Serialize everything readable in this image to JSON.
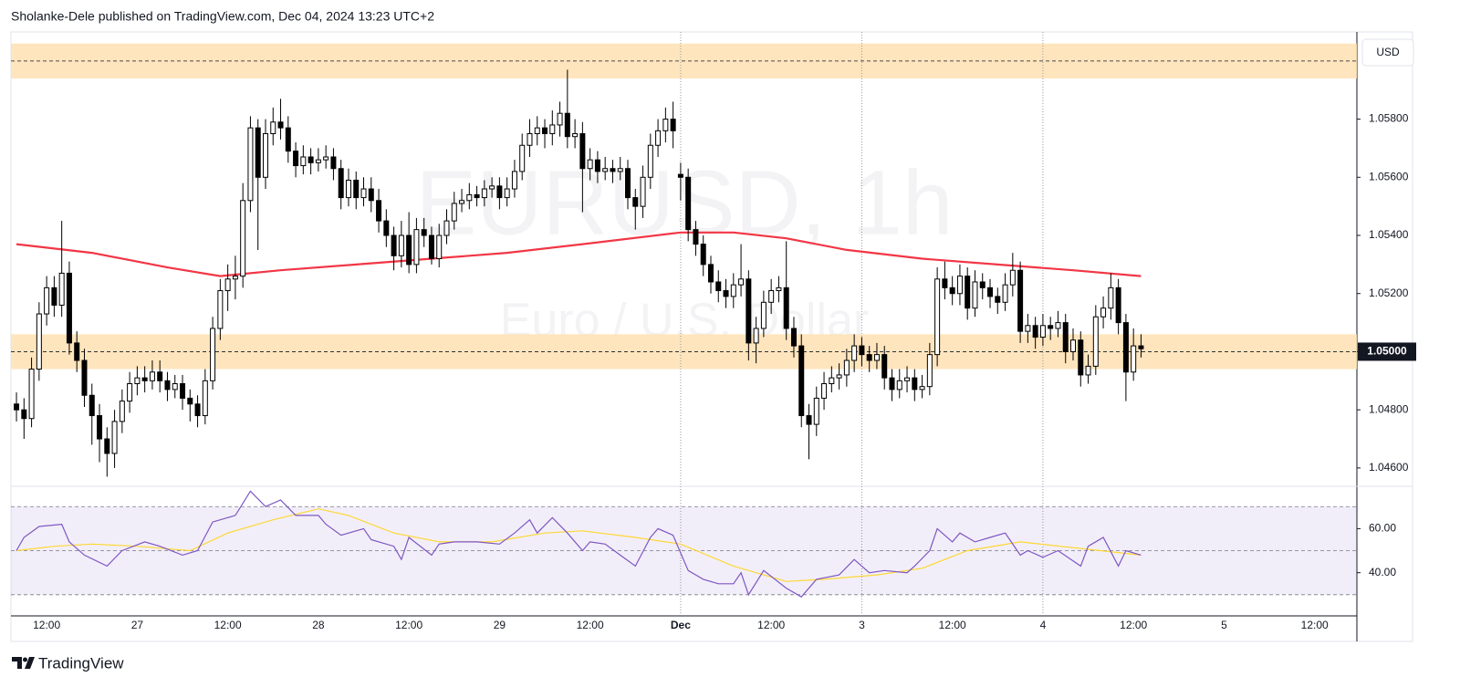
{
  "chart_data": {
    "type": "candlestick",
    "header": "Sholanke-Dele published on TradingView.com, Dec 04, 2024 13:23 UTC+2",
    "watermark": {
      "symbol": "EURUSD, 1h",
      "description": "Euro / U.S. Dollar"
    },
    "currency": "USD",
    "brand": "TradingView",
    "up_color": "#ffffff",
    "down_color": "#000000",
    "ylim": [
      1.0454,
      1.061
    ],
    "yticks": [
      {
        "value": 1.046,
        "label": "1.04600"
      },
      {
        "value": 1.048,
        "label": "1.04800"
      },
      {
        "value": 1.05,
        "label": "1.05000"
      },
      {
        "value": 1.052,
        "label": "1.05200"
      },
      {
        "value": 1.054,
        "label": "1.05400"
      },
      {
        "value": 1.056,
        "label": "1.05600"
      },
      {
        "value": 1.058,
        "label": "1.05800"
      }
    ],
    "xlim": [
      -0.73,
      177.6
    ],
    "xticks": [
      {
        "value": 4,
        "label": "12:00"
      },
      {
        "value": 16,
        "label": "27"
      },
      {
        "value": 28,
        "label": "12:00"
      },
      {
        "value": 40,
        "label": "28"
      },
      {
        "value": 52,
        "label": "12:00"
      },
      {
        "value": 64,
        "label": "29"
      },
      {
        "value": 76,
        "label": "12:00"
      },
      {
        "value": 88,
        "label": "Dec"
      },
      {
        "value": 100,
        "label": "12:00"
      },
      {
        "value": 112,
        "label": "3"
      },
      {
        "value": 124,
        "label": "12:00"
      },
      {
        "value": 136,
        "label": "4"
      },
      {
        "value": 148,
        "label": "12:00"
      },
      {
        "value": 160,
        "label": "5"
      },
      {
        "value": 172,
        "label": "12:00"
      }
    ],
    "zones": [
      {
        "low": 1.0594,
        "high": 1.0606,
        "level": 1.06
      },
      {
        "low": 1.0494,
        "high": 1.0506,
        "level": 1.05,
        "label": "1.05000"
      }
    ],
    "zone_color": "#ffe0b2",
    "candles": [
      [
        1.0482,
        1.0486,
        1.0476,
        1.048
      ],
      [
        1.048,
        1.0484,
        1.047,
        1.0477
      ],
      [
        1.0477,
        1.0498,
        1.0474,
        1.0494
      ],
      [
        1.0494,
        1.0517,
        1.049,
        1.0513
      ],
      [
        1.0513,
        1.0526,
        1.0509,
        1.0522
      ],
      [
        1.0522,
        1.0526,
        1.0512,
        1.0516
      ],
      [
        1.0516,
        1.0545,
        1.0512,
        1.0527
      ],
      [
        1.0527,
        1.0531,
        1.0499,
        1.0503
      ],
      [
        1.0503,
        1.0507,
        1.0493,
        1.0497
      ],
      [
        1.0497,
        1.0501,
        1.0481,
        1.0485
      ],
      [
        1.0485,
        1.0489,
        1.0468,
        1.0478
      ],
      [
        1.0478,
        1.0482,
        1.0462,
        1.047
      ],
      [
        1.047,
        1.0474,
        1.0457,
        1.0465
      ],
      [
        1.0465,
        1.048,
        1.046,
        1.0476
      ],
      [
        1.0476,
        1.0487,
        1.0472,
        1.0483
      ],
      [
        1.0483,
        1.0493,
        1.0479,
        1.0489
      ],
      [
        1.0489,
        1.0495,
        1.0485,
        1.0491
      ],
      [
        1.0491,
        1.0495,
        1.0486,
        1.049
      ],
      [
        1.049,
        1.0497,
        1.0487,
        1.0493
      ],
      [
        1.0493,
        1.0497,
        1.0486,
        1.049
      ],
      [
        1.049,
        1.0493,
        1.0483,
        1.0487
      ],
      [
        1.0487,
        1.0492,
        1.0484,
        1.0489
      ],
      [
        1.0489,
        1.0492,
        1.048,
        1.0484
      ],
      [
        1.0484,
        1.0487,
        1.0476,
        1.0482
      ],
      [
        1.0482,
        1.0485,
        1.0474,
        1.0478
      ],
      [
        1.0478,
        1.0494,
        1.0475,
        1.049
      ],
      [
        1.049,
        1.0512,
        1.0487,
        1.0508
      ],
      [
        1.0508,
        1.0525,
        1.0504,
        1.0521
      ],
      [
        1.0521,
        1.053,
        1.0514,
        1.0525
      ],
      [
        1.0525,
        1.0533,
        1.0518,
        1.0526
      ],
      [
        1.0526,
        1.0558,
        1.0522,
        1.0552
      ],
      [
        1.0552,
        1.0581,
        1.0548,
        1.0577
      ],
      [
        1.0577,
        1.058,
        1.0535,
        1.056
      ],
      [
        1.056,
        1.058,
        1.0556,
        1.0575
      ],
      [
        1.0575,
        1.0584,
        1.0571,
        1.0579
      ],
      [
        1.0579,
        1.0587,
        1.0573,
        1.0577
      ],
      [
        1.0577,
        1.0581,
        1.0565,
        1.0569
      ],
      [
        1.0569,
        1.0572,
        1.056,
        1.0564
      ],
      [
        1.0564,
        1.0571,
        1.0561,
        1.0567
      ],
      [
        1.0567,
        1.057,
        1.0561,
        1.0565
      ],
      [
        1.0565,
        1.057,
        1.0562,
        1.0566
      ],
      [
        1.0566,
        1.0571,
        1.0563,
        1.0567
      ],
      [
        1.0567,
        1.057,
        1.0559,
        1.0563
      ],
      [
        1.0563,
        1.0566,
        1.0549,
        1.0553
      ],
      [
        1.0553,
        1.0563,
        1.055,
        1.0559
      ],
      [
        1.0559,
        1.0562,
        1.0549,
        1.0553
      ],
      [
        1.0553,
        1.056,
        1.055,
        1.0556
      ],
      [
        1.0556,
        1.056,
        1.0548,
        1.0552
      ],
      [
        1.0552,
        1.0556,
        1.0541,
        1.0545
      ],
      [
        1.0545,
        1.0549,
        1.0536,
        1.054
      ],
      [
        1.054,
        1.0543,
        1.0528,
        1.0533
      ],
      [
        1.0533,
        1.0545,
        1.0529,
        1.054
      ],
      [
        1.054,
        1.0548,
        1.0527,
        1.053
      ],
      [
        1.053,
        1.0546,
        1.0527,
        1.0542
      ],
      [
        1.0542,
        1.0546,
        1.0536,
        1.054
      ],
      [
        1.054,
        1.0543,
        1.053,
        1.0532
      ],
      [
        1.0532,
        1.0544,
        1.0529,
        1.054
      ],
      [
        1.054,
        1.0549,
        1.0537,
        1.0545
      ],
      [
        1.0545,
        1.0555,
        1.0542,
        1.0551
      ],
      [
        1.0551,
        1.0556,
        1.0548,
        1.0552
      ],
      [
        1.0552,
        1.0558,
        1.0549,
        1.0554
      ],
      [
        1.0554,
        1.0557,
        1.055,
        1.0553
      ],
      [
        1.0553,
        1.0559,
        1.055,
        1.0556
      ],
      [
        1.0556,
        1.056,
        1.0553,
        1.0557
      ],
      [
        1.0557,
        1.056,
        1.0549,
        1.0553
      ],
      [
        1.0553,
        1.056,
        1.055,
        1.0556
      ],
      [
        1.0556,
        1.0566,
        1.0553,
        1.0562
      ],
      [
        1.0562,
        1.0575,
        1.0559,
        1.0571
      ],
      [
        1.0571,
        1.058,
        1.0567,
        1.0575
      ],
      [
        1.0575,
        1.0581,
        1.0571,
        1.0577
      ],
      [
        1.0577,
        1.058,
        1.057,
        1.0575
      ],
      [
        1.0575,
        1.0583,
        1.0571,
        1.0578
      ],
      [
        1.0578,
        1.0586,
        1.0574,
        1.0582
      ],
      [
        1.0582,
        1.0597,
        1.057,
        1.0574
      ],
      [
        1.0574,
        1.058,
        1.057,
        1.0575
      ],
      [
        1.0575,
        1.0579,
        1.0548,
        1.0563
      ],
      [
        1.0563,
        1.057,
        1.0559,
        1.0566
      ],
      [
        1.0566,
        1.0569,
        1.0558,
        1.0562
      ],
      [
        1.0562,
        1.0567,
        1.0559,
        1.0563
      ],
      [
        1.0563,
        1.0566,
        1.0558,
        1.0562
      ],
      [
        1.0562,
        1.0567,
        1.0559,
        1.0563
      ],
      [
        1.0563,
        1.0566,
        1.0549,
        1.0553
      ],
      [
        1.0553,
        1.0556,
        1.0542,
        1.055
      ],
      [
        1.055,
        1.0564,
        1.0546,
        1.056
      ],
      [
        1.056,
        1.0575,
        1.0556,
        1.0571
      ],
      [
        1.0571,
        1.058,
        1.0567,
        1.0576
      ],
      [
        1.0576,
        1.0584,
        1.0572,
        1.058
      ],
      [
        1.058,
        1.0586,
        1.057,
        1.0576
      ],
      [
        1.0561,
        1.0565,
        1.0552,
        1.056
      ],
      [
        1.056,
        1.0563,
        1.0538,
        1.0542
      ],
      [
        1.0542,
        1.0545,
        1.0533,
        1.0537
      ],
      [
        1.0537,
        1.054,
        1.0526,
        1.053
      ],
      [
        1.053,
        1.0533,
        1.052,
        1.0524
      ],
      [
        1.0524,
        1.0528,
        1.0517,
        1.0521
      ],
      [
        1.0521,
        1.0525,
        1.0515,
        1.0519
      ],
      [
        1.0519,
        1.0527,
        1.0515,
        1.0523
      ],
      [
        1.0523,
        1.0537,
        1.0519,
        1.0525
      ],
      [
        1.0525,
        1.0528,
        1.0497,
        1.0503
      ],
      [
        1.0503,
        1.0512,
        1.0496,
        1.0508
      ],
      [
        1.0508,
        1.0521,
        1.0505,
        1.0517
      ],
      [
        1.0517,
        1.0525,
        1.0513,
        1.0521
      ],
      [
        1.0521,
        1.0526,
        1.0517,
        1.0522
      ],
      [
        1.0522,
        1.0538,
        1.0504,
        1.0508
      ],
      [
        1.0508,
        1.0512,
        1.0498,
        1.0502
      ],
      [
        1.0502,
        1.0506,
        1.0474,
        1.0478
      ],
      [
        1.0478,
        1.0482,
        1.0463,
        1.0475
      ],
      [
        1.0475,
        1.0488,
        1.0471,
        1.0484
      ],
      [
        1.0484,
        1.0493,
        1.048,
        1.0489
      ],
      [
        1.0489,
        1.0495,
        1.0486,
        1.0491
      ],
      [
        1.0491,
        1.0496,
        1.0487,
        1.0492
      ],
      [
        1.0492,
        1.0501,
        1.0488,
        1.0497
      ],
      [
        1.0497,
        1.0506,
        1.0493,
        1.0502
      ],
      [
        1.0502,
        1.0505,
        1.0495,
        1.0499
      ],
      [
        1.0499,
        1.0502,
        1.0493,
        1.0497
      ],
      [
        1.0497,
        1.0503,
        1.0494,
        1.0499
      ],
      [
        1.0499,
        1.0502,
        1.0487,
        1.0491
      ],
      [
        1.0491,
        1.0494,
        1.0483,
        1.0487
      ],
      [
        1.0487,
        1.0494,
        1.0484,
        1.049
      ],
      [
        1.049,
        1.0495,
        1.0486,
        1.0491
      ],
      [
        1.0491,
        1.0494,
        1.0483,
        1.0487
      ],
      [
        1.0487,
        1.0492,
        1.0484,
        1.0488
      ],
      [
        1.0488,
        1.0503,
        1.0485,
        1.0499
      ],
      [
        1.0499,
        1.0529,
        1.0495,
        1.0525
      ],
      [
        1.0525,
        1.0531,
        1.0518,
        1.0522
      ],
      [
        1.0522,
        1.0526,
        1.0516,
        1.052
      ],
      [
        1.052,
        1.053,
        1.0516,
        1.0526
      ],
      [
        1.0526,
        1.0529,
        1.0511,
        1.0515
      ],
      [
        1.0515,
        1.0528,
        1.0512,
        1.0524
      ],
      [
        1.0524,
        1.0527,
        1.0518,
        1.0522
      ],
      [
        1.0522,
        1.0525,
        1.0515,
        1.0519
      ],
      [
        1.0519,
        1.0522,
        1.0513,
        1.0517
      ],
      [
        1.0517,
        1.0527,
        1.0514,
        1.0523
      ],
      [
        1.0523,
        1.0534,
        1.0519,
        1.0528
      ],
      [
        1.0528,
        1.0531,
        1.0503,
        1.0507
      ],
      [
        1.0507,
        1.0513,
        1.0503,
        1.0509
      ],
      [
        1.0509,
        1.0512,
        1.0501,
        1.0505
      ],
      [
        1.0505,
        1.0513,
        1.0502,
        1.0509
      ],
      [
        1.0509,
        1.0512,
        1.0504,
        1.0508
      ],
      [
        1.0508,
        1.0514,
        1.0505,
        1.051
      ],
      [
        1.051,
        1.0513,
        1.0496,
        1.05
      ],
      [
        1.05,
        1.0508,
        1.0497,
        1.0504
      ],
      [
        1.0504,
        1.0507,
        1.0488,
        1.0492
      ],
      [
        1.0492,
        1.0499,
        1.0489,
        1.0495
      ],
      [
        1.0495,
        1.0516,
        1.0492,
        1.0512
      ],
      [
        1.0512,
        1.0519,
        1.0508,
        1.0515
      ],
      [
        1.0515,
        1.0527,
        1.0511,
        1.0522
      ],
      [
        1.0522,
        1.0525,
        1.0506,
        1.051
      ],
      [
        1.051,
        1.0513,
        1.0483,
        1.0493
      ],
      [
        1.0493,
        1.0508,
        1.049,
        1.0502
      ],
      [
        1.0502,
        1.0506,
        1.0498,
        1.0501
      ]
    ],
    "ema": {
      "color": "#f23645",
      "x": [
        0,
        10,
        20,
        27,
        35,
        45,
        55,
        65,
        75,
        88,
        95,
        102,
        110,
        120,
        130,
        140,
        149
      ],
      "values": [
        1.0537,
        1.0534,
        1.0529,
        1.0526,
        1.0528,
        1.053,
        1.0532,
        1.0534,
        1.0537,
        1.0541,
        1.0541,
        1.0539,
        1.0535,
        1.0532,
        1.053,
        1.0528,
        1.0526
      ]
    },
    "rsi": {
      "color": "#7e57c2",
      "band_color": "#7e57c2",
      "ylim": [
        20.4,
        78.8
      ],
      "yticks": [
        {
          "value": 40,
          "label": "40.00"
        },
        {
          "value": 60,
          "label": "60.00"
        }
      ],
      "upper": 70,
      "middle": 50,
      "lower": 30,
      "x": [
        0,
        1,
        3,
        6,
        7,
        9,
        12,
        14,
        17,
        19,
        22,
        24,
        26,
        29,
        31,
        33,
        35,
        37,
        40,
        41,
        43,
        46,
        47,
        50,
        51,
        52,
        55,
        56,
        58,
        61,
        64,
        66,
        68,
        69,
        71,
        73,
        75,
        76,
        78,
        80,
        82,
        84,
        85,
        87,
        89,
        91,
        93,
        95,
        96,
        97,
        99,
        102,
        104,
        106,
        109,
        111,
        113,
        115,
        118,
        119,
        121,
        122,
        124,
        125,
        127,
        129,
        131,
        133,
        134,
        136,
        138,
        141,
        142,
        144,
        146,
        147,
        149
      ],
      "values": [
        50,
        56,
        61,
        62,
        54,
        48,
        43,
        50,
        54,
        52,
        48,
        50,
        63,
        66,
        77,
        70,
        73,
        66,
        66,
        62,
        57,
        60,
        55,
        52,
        46,
        56,
        48,
        53,
        54,
        54,
        53,
        58,
        64,
        58,
        65,
        58,
        50,
        54,
        53,
        48,
        43,
        56,
        60,
        57,
        41,
        37,
        35,
        35,
        40,
        30,
        41,
        33,
        29,
        37,
        39,
        46,
        40,
        41,
        40,
        43,
        50,
        60,
        54,
        58,
        54,
        56,
        58,
        48,
        50,
        47,
        50,
        43,
        52,
        56,
        43,
        50,
        48
      ],
      "ma_color": "#fdd835",
      "ma_x": [
        0,
        5,
        10,
        16,
        23,
        28,
        34,
        40,
        44,
        50,
        56,
        63,
        70,
        75,
        82,
        88,
        95,
        102,
        107,
        114,
        120,
        126,
        133,
        141,
        149
      ],
      "ma_values": [
        50,
        52,
        53,
        52,
        50,
        58,
        64,
        69,
        66,
        58,
        54,
        54,
        58,
        59,
        56,
        53,
        43,
        36,
        37,
        39,
        42,
        50,
        54,
        51,
        48
      ]
    }
  }
}
